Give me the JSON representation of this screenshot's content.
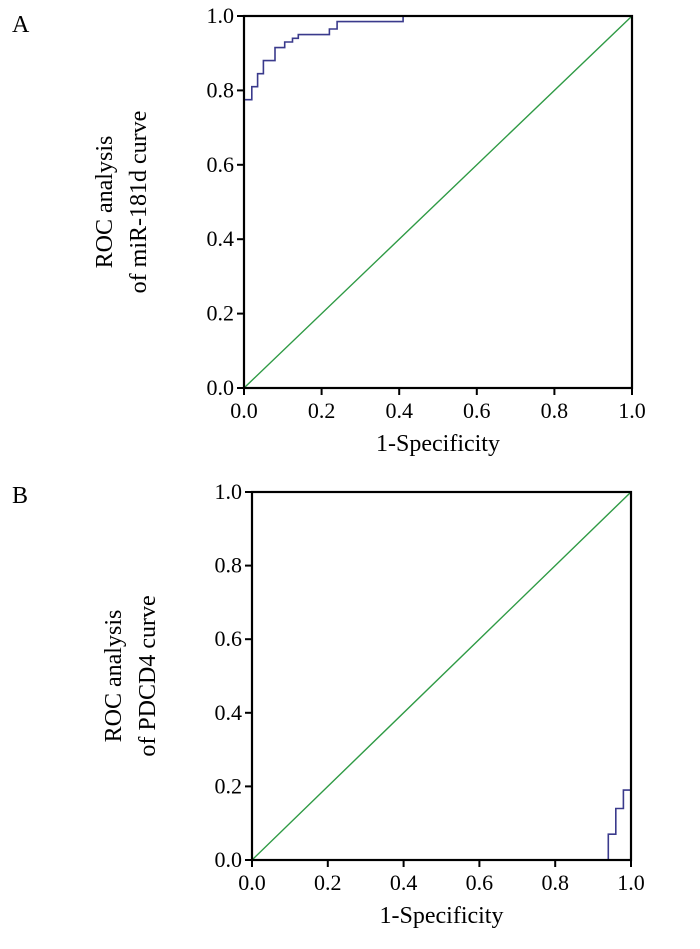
{
  "chart_data": [
    {
      "type": "line",
      "panel_label": "A",
      "xlabel": "1-Specificity",
      "ylabel": [
        "ROC analysis",
        "of miR-181d curve"
      ],
      "xlim": [
        0,
        1
      ],
      "ylim": [
        0,
        1
      ],
      "xticks": [
        "0.0",
        "0.2",
        "0.4",
        "0.6",
        "0.8",
        "1.0"
      ],
      "yticks": [
        "0.0",
        "0.2",
        "0.4",
        "0.6",
        "0.8",
        "1.0"
      ],
      "grid": false,
      "series": [
        {
          "line_type": "roc-step",
          "color": "#3a3a8c",
          "x": [
            0,
            0,
            0.02,
            0.02,
            0.035,
            0.035,
            0.05,
            0.05,
            0.08,
            0.08,
            0.105,
            0.105,
            0.125,
            0.125,
            0.14,
            0.14,
            0.22,
            0.22,
            0.24,
            0.24,
            0.41,
            0.41,
            1.0
          ],
          "y": [
            0,
            0.775,
            0.775,
            0.81,
            0.81,
            0.845,
            0.845,
            0.88,
            0.88,
            0.915,
            0.915,
            0.93,
            0.93,
            0.94,
            0.94,
            0.95,
            0.95,
            0.965,
            0.965,
            0.985,
            0.985,
            1.0,
            1.0
          ]
        },
        {
          "line_type": "reference",
          "color": "#2e9a44",
          "x": [
            0,
            1
          ],
          "y": [
            0,
            1
          ]
        }
      ]
    },
    {
      "type": "line",
      "panel_label": "B",
      "xlabel": "1-Specificity",
      "ylabel": [
        "ROC analysis",
        "of PDCD4 curve"
      ],
      "xlim": [
        0,
        1
      ],
      "ylim": [
        0,
        1
      ],
      "xticks": [
        "0.0",
        "0.2",
        "0.4",
        "0.6",
        "0.8",
        "1.0"
      ],
      "yticks": [
        "0.0",
        "0.2",
        "0.4",
        "0.6",
        "0.8",
        "1.0"
      ],
      "grid": false,
      "series": [
        {
          "line_type": "roc-step",
          "color": "#3a3a8c",
          "x": [
            0.94,
            0.94,
            0.96,
            0.96,
            0.98,
            0.98,
            1.0,
            1.0
          ],
          "y": [
            0,
            0.07,
            0.07,
            0.14,
            0.14,
            0.19,
            0.19,
            1.0
          ]
        },
        {
          "line_type": "reference",
          "color": "#2e9a44",
          "x": [
            0,
            1
          ],
          "y": [
            0,
            1
          ]
        }
      ]
    }
  ]
}
